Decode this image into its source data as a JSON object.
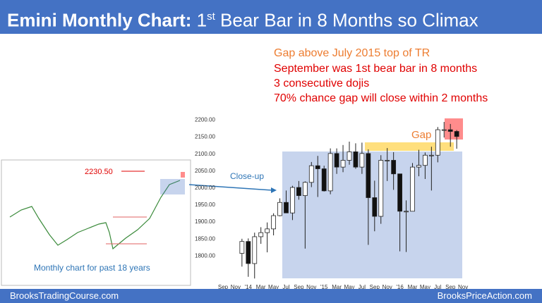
{
  "header": {
    "title_bold": "Emini Monthly Chart:",
    "title_number": "1",
    "title_superscript": "st",
    "title_rest": "Bear Bar in 8 Months so Climax"
  },
  "annotations": {
    "gap_note": "Gap above July 2015 top of TR",
    "notes": [
      "September was 1st bear bar in 8 months",
      "3 consecutive dojis",
      "70% chance gap will close within 2 months"
    ],
    "gap": "Gap",
    "close_up": "Close-up"
  },
  "thumbnail": {
    "high_label": "2230.50",
    "caption": "Monthly chart for past 18 years"
  },
  "footer": {
    "left": "BrooksTradingCourse.com",
    "right": "BrooksPriceAction.com"
  },
  "chart_data": {
    "type": "candlestick",
    "categories": [
      "Sep",
      null,
      "Nov",
      null,
      "'14",
      null,
      "Mar",
      null,
      "May",
      null,
      "Jul",
      null,
      "Sep",
      null,
      "Nov",
      null,
      "'15",
      null,
      "Mar",
      null,
      "May",
      null,
      "Jul",
      null,
      "Sep",
      null,
      "Nov",
      null,
      "'16",
      null,
      "Mar",
      null,
      "May",
      null,
      "Jul",
      null,
      "Sep",
      null,
      "Nov"
    ],
    "open": [
      null,
      null,
      null,
      1806,
      1841,
      1776,
      1855,
      1867,
      1878,
      1917,
      1956,
      1925,
      2000,
      1976,
      2015,
      2064,
      2055,
      1990,
      2100,
      2060,
      2080,
      2105,
      2060,
      2100,
      1970,
      1915,
      2080,
      2080,
      2040,
      1930,
      1930,
      2060,
      2065,
      2095,
      2095,
      2170,
      2170,
      2165,
      null
    ],
    "high": [
      null,
      null,
      null,
      1849,
      1850,
      1867,
      1883,
      1897,
      1924,
      1968,
      1991,
      2005,
      2019,
      2018,
      2075,
      2093,
      2064,
      2115,
      2115,
      2125,
      2135,
      2130,
      2132,
      2112,
      2020,
      2095,
      2116,
      2104,
      2038,
      1962,
      2072,
      2111,
      2103,
      2120,
      2178,
      2193,
      2187,
      2169,
      null
    ],
    "low": [
      null,
      null,
      null,
      1767,
      1737,
      1732,
      1834,
      1809,
      1859,
      1915,
      1925,
      1904,
      1964,
      1820,
      2001,
      1972,
      1988,
      1980,
      2040,
      2045,
      2067,
      2055,
      2040,
      1831,
      1871,
      1893,
      2019,
      1993,
      1812,
      1810,
      1931,
      2033,
      2025,
      1991,
      2074,
      2147,
      2120,
      2114,
      null
    ],
    "close": [
      null,
      null,
      null,
      1841,
      1776,
      1855,
      1867,
      1878,
      1917,
      1956,
      1925,
      2000,
      1976,
      2015,
      2064,
      2055,
      1990,
      2100,
      2060,
      2080,
      2105,
      2060,
      2100,
      1970,
      1915,
      2080,
      2080,
      2040,
      1930,
      1930,
      2060,
      2065,
      2095,
      2095,
      2170,
      2170,
      2165,
      2150,
      null
    ],
    "ylim": [
      1720,
      2220
    ],
    "yticks": [
      {
        "value": 1800,
        "label": "1800.00"
      },
      {
        "value": 1850,
        "label": "1850.00"
      },
      {
        "value": 1900,
        "label": "1900.00"
      },
      {
        "value": 1950,
        "label": "1950.00"
      },
      {
        "value": 2000,
        "label": "2000.00"
      },
      {
        "value": 2050,
        "label": "2050.00"
      },
      {
        "value": 2100,
        "label": "2100.00"
      },
      {
        "value": 2150,
        "label": "2150.00"
      },
      {
        "value": 2200,
        "label": "2200.00"
      }
    ],
    "bull_color": "#ffffff",
    "bear_color": "#111111"
  }
}
